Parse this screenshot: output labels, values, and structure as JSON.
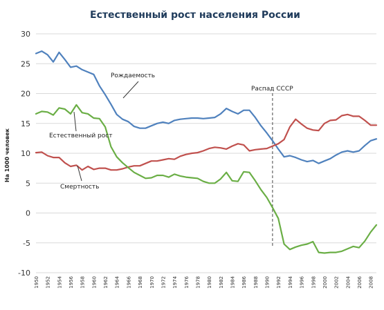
{
  "chart_data": {
    "type": "line",
    "title": "Естественный рост населения России",
    "ylabel": "На 1000 человек",
    "xlabel": "",
    "ylim": [
      -10,
      30
    ],
    "yticks": [
      -10,
      -5,
      0,
      5,
      10,
      15,
      20,
      25,
      30
    ],
    "x_tick_labels": [
      "1950",
      "1952",
      "1954",
      "1956",
      "1958",
      "1960",
      "1962",
      "1964",
      "1966",
      "1968",
      "1970",
      "1972",
      "1974",
      "1976",
      "1978",
      "1980",
      "1982",
      "1984",
      "1986",
      "1988",
      "1990",
      "1992",
      "1994",
      "1996",
      "1998",
      "2000",
      "2002",
      "2004",
      "2006",
      "2008"
    ],
    "grid": "horizontal",
    "x": [
      1950,
      1951,
      1952,
      1953,
      1954,
      1955,
      1956,
      1957,
      1958,
      1959,
      1960,
      1961,
      1962,
      1963,
      1964,
      1965,
      1966,
      1967,
      1968,
      1969,
      1970,
      1971,
      1972,
      1973,
      1974,
      1975,
      1976,
      1977,
      1978,
      1979,
      1980,
      1981,
      1982,
      1983,
      1984,
      1985,
      1986,
      1987,
      1988,
      1989,
      1990,
      1991,
      1992,
      1993,
      1994,
      1995,
      1996,
      1997,
      1998,
      1999,
      2000,
      2001,
      2002,
      2003,
      2004,
      2005,
      2006,
      2007,
      2008,
      2009
    ],
    "series": [
      {
        "name": "Рождаемость",
        "color": "#4f81bd",
        "values": [
          26.7,
          27.1,
          26.5,
          25.3,
          26.9,
          25.7,
          24.4,
          24.6,
          24.0,
          23.6,
          23.2,
          21.3,
          19.8,
          18.2,
          16.5,
          15.7,
          15.3,
          14.5,
          14.2,
          14.2,
          14.6,
          15.0,
          15.2,
          15.0,
          15.5,
          15.7,
          15.8,
          15.9,
          15.9,
          15.8,
          15.9,
          16.0,
          16.6,
          17.5,
          17.0,
          16.6,
          17.2,
          17.2,
          16.0,
          14.6,
          13.4,
          12.1,
          10.7,
          9.4,
          9.6,
          9.3,
          8.9,
          8.6,
          8.8,
          8.3,
          8.7,
          9.1,
          9.7,
          10.2,
          10.4,
          10.2,
          10.4,
          11.3,
          12.1,
          12.4
        ]
      },
      {
        "name": "Смертность",
        "color": "#c0504d",
        "values": [
          10.1,
          10.2,
          9.6,
          9.3,
          9.3,
          8.4,
          7.8,
          8.0,
          7.2,
          7.8,
          7.3,
          7.5,
          7.5,
          7.2,
          7.2,
          7.4,
          7.7,
          7.9,
          7.9,
          8.3,
          8.7,
          8.7,
          8.9,
          9.1,
          9.0,
          9.5,
          9.8,
          10.0,
          10.1,
          10.4,
          10.8,
          11.0,
          10.9,
          10.7,
          11.2,
          11.6,
          11.4,
          10.4,
          10.6,
          10.7,
          10.8,
          11.2,
          11.6,
          12.3,
          14.4,
          15.7,
          14.9,
          14.2,
          13.9,
          13.8,
          15.0,
          15.5,
          15.6,
          16.3,
          16.5,
          16.2,
          16.2,
          15.5,
          14.7,
          14.7
        ]
      },
      {
        "name": "Естественный рост",
        "color": "#6aae45",
        "values": [
          16.6,
          17.0,
          16.9,
          16.4,
          17.6,
          17.4,
          16.6,
          18.1,
          16.8,
          16.6,
          15.9,
          15.8,
          14.4,
          11.1,
          9.4,
          8.4,
          7.6,
          6.8,
          6.3,
          5.8,
          5.9,
          6.3,
          6.3,
          6.0,
          6.5,
          6.2,
          6.0,
          5.9,
          5.8,
          5.3,
          5.0,
          5.0,
          5.7,
          6.8,
          5.4,
          5.3,
          6.9,
          6.8,
          5.4,
          3.9,
          2.6,
          0.9,
          -0.9,
          -5.2,
          -6.1,
          -5.7,
          -5.4,
          -5.2,
          -4.8,
          -6.6,
          -6.7,
          -6.6,
          -6.6,
          -6.4,
          -6.0,
          -5.6,
          -5.8,
          -4.7,
          -3.2,
          -2.0
        ]
      }
    ],
    "annotations": [
      {
        "text": "Рождаемость"
      },
      {
        "text": "Естественный рост"
      },
      {
        "text": "Смертность"
      },
      {
        "text": "Распад СССР",
        "x": 1991
      }
    ]
  }
}
